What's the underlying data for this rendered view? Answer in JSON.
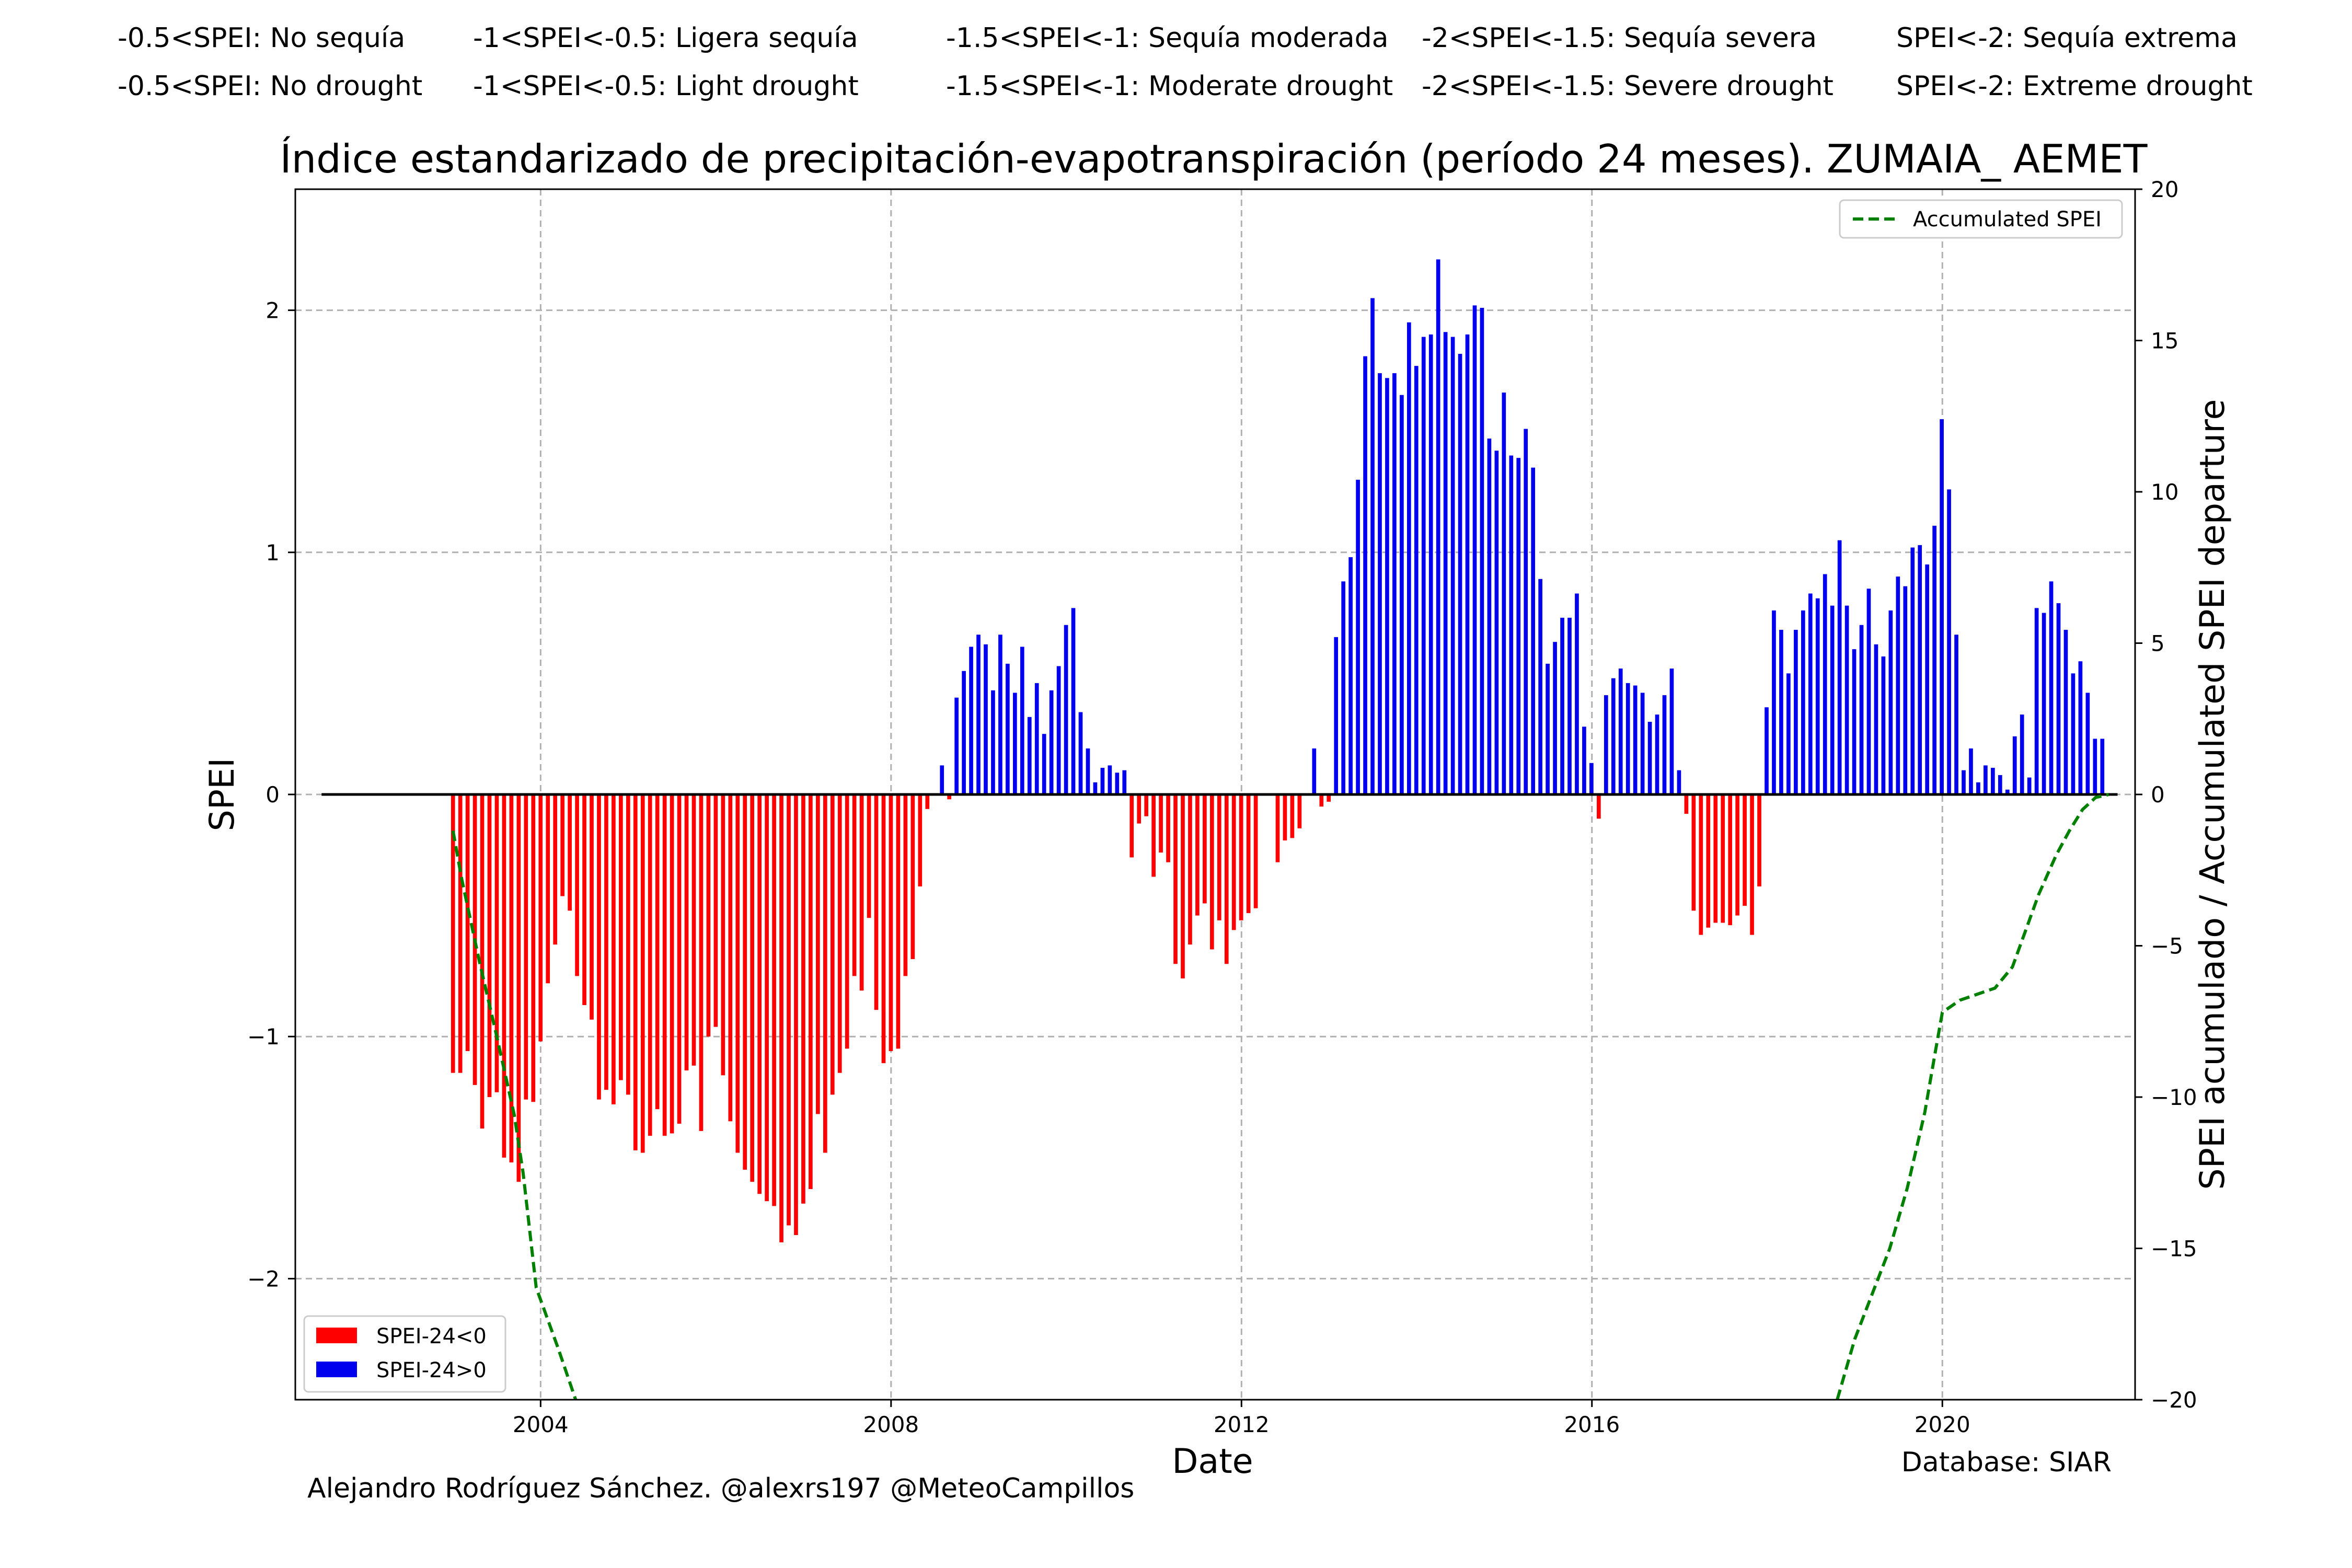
{
  "header": {
    "row_es": [
      "-0.5<SPEI: No sequía",
      "-1<SPEI<-0.5: Ligera sequía",
      "-1.5<SPEI<-1: Sequía moderada",
      "-2<SPEI<-1.5: Sequía severa",
      "SPEI<-2: Sequía extrema"
    ],
    "row_en": [
      "-0.5<SPEI: No drought",
      "-1<SPEI<-0.5: Light drought",
      "-1.5<SPEI<-1: Moderate drought",
      "-2<SPEI<-1.5: Severe drought",
      "SPEI<-2: Extreme drought"
    ]
  },
  "footer": {
    "author": "Alejandro Rodríguez Sánchez. @alexrs197 @MeteoCampillos",
    "database": "Database: SIAR"
  },
  "colors": {
    "negative": "#ff0000",
    "positive": "#0000ee",
    "accumulated": "#008000",
    "grid": "#b0b0b0"
  },
  "chart_data": {
    "type": "bar",
    "title": "Índice estandarizado de precipitación-evapotranspiración (período 24 meses). ZUMAIA_ AEMET",
    "xlabel": "Date",
    "ylabel": "SPEI",
    "y2label": "SPEI acumulado / Accumulated SPEI departure",
    "xlim": [
      2001.2,
      2022.2
    ],
    "ylim": [
      -2.5,
      2.5
    ],
    "y2lim": [
      -20,
      20
    ],
    "xticks": [
      2004,
      2008,
      2012,
      2016,
      2020
    ],
    "yticks": [
      -2,
      -1,
      0,
      1,
      2
    ],
    "y2ticks": [
      -20,
      -15,
      -10,
      -5,
      0,
      5,
      10,
      15,
      20
    ],
    "grid": true,
    "bar_start": 2003.0,
    "bar_step_years": 0.0833,
    "spei_24": [
      -1.15,
      -1.15,
      -1.06,
      -1.2,
      -1.38,
      -1.25,
      -1.23,
      -1.5,
      -1.52,
      -1.6,
      -1.26,
      -1.27,
      -1.02,
      -0.78,
      -0.62,
      -0.42,
      -0.48,
      -0.75,
      -0.87,
      -0.93,
      -1.26,
      -1.22,
      -1.28,
      -1.18,
      -1.24,
      -1.47,
      -1.48,
      -1.41,
      -1.3,
      -1.41,
      -1.4,
      -1.36,
      -1.14,
      -1.12,
      -1.39,
      -1.0,
      -0.96,
      -1.16,
      -1.35,
      -1.48,
      -1.55,
      -1.6,
      -1.65,
      -1.68,
      -1.7,
      -1.85,
      -1.78,
      -1.82,
      -1.69,
      -1.63,
      -1.32,
      -1.48,
      -1.24,
      -1.15,
      -1.05,
      -0.75,
      -0.81,
      -0.51,
      -0.89,
      -1.11,
      -1.06,
      -1.05,
      -0.75,
      -0.68,
      -0.38,
      -0.06,
      0.0,
      0.12,
      -0.02,
      0.4,
      0.51,
      0.61,
      0.66,
      0.62,
      0.43,
      0.66,
      0.54,
      0.42,
      0.61,
      0.32,
      0.46,
      0.25,
      0.43,
      0.53,
      0.7,
      0.77,
      0.34,
      0.19,
      0.05,
      0.11,
      0.12,
      0.09,
      0.1,
      -0.26,
      -0.12,
      -0.09,
      -0.34,
      -0.24,
      -0.28,
      -0.7,
      -0.76,
      -0.62,
      -0.5,
      -0.45,
      -0.64,
      -0.52,
      -0.7,
      -0.56,
      -0.52,
      -0.49,
      -0.47,
      0.0,
      0.0,
      -0.28,
      -0.19,
      -0.18,
      -0.14,
      0.0,
      0.19,
      -0.05,
      -0.03,
      0.65,
      0.88,
      0.98,
      1.3,
      1.81,
      2.05,
      1.74,
      1.72,
      1.74,
      1.65,
      1.95,
      1.77,
      1.89,
      1.9,
      2.21,
      1.91,
      1.89,
      1.82,
      1.9,
      2.02,
      2.01,
      1.47,
      1.42,
      1.66,
      1.4,
      1.39,
      1.51,
      1.35,
      0.89,
      0.54,
      0.63,
      0.73,
      0.73,
      0.83,
      0.28,
      0.13,
      -0.1,
      0.41,
      0.48,
      0.52,
      0.46,
      0.45,
      0.42,
      0.3,
      0.33,
      0.41,
      0.52,
      0.1,
      -0.08,
      -0.48,
      -0.58,
      -0.55,
      -0.53,
      -0.53,
      -0.54,
      -0.5,
      -0.46,
      -0.58,
      -0.38,
      0.36,
      0.76,
      0.68,
      0.5,
      0.68,
      0.76,
      0.83,
      0.81,
      0.91,
      0.78,
      1.05,
      0.78,
      0.6,
      0.7,
      0.85,
      0.62,
      0.57,
      0.76,
      0.9,
      0.86,
      1.02,
      1.03,
      0.95,
      1.11,
      1.55,
      1.26,
      0.66,
      0.1,
      0.19,
      0.05,
      0.12,
      0.11,
      0.08,
      0.02,
      0.24,
      0.33,
      0.07,
      0.77,
      0.75,
      0.88,
      0.79,
      0.68,
      0.5,
      0.55,
      0.42,
      0.23,
      0.23
    ],
    "baseline_range": [
      2001.5,
      2022.0
    ],
    "accumulated": {
      "name": "Accumulated SPEI",
      "segments": [
        {
          "x": [
            2003.0,
            2003.1,
            2003.3,
            2003.5,
            2003.7,
            2003.8,
            2003.95,
            2004.2,
            2004.4
          ],
          "y": [
            -1.2,
            -2.8,
            -5.5,
            -8.0,
            -10.6,
            -12.5,
            -16.3,
            -18.3,
            -20.0
          ]
        },
        {
          "x": [
            2018.8,
            2019.0,
            2019.2,
            2019.4,
            2019.6,
            2019.8,
            2019.92,
            2020.0,
            2020.2,
            2020.4,
            2020.6,
            2020.8,
            2020.95,
            2021.1,
            2021.3,
            2021.45,
            2021.6,
            2021.75,
            2021.9
          ],
          "y": [
            -20.0,
            -18.0,
            -16.5,
            -15.0,
            -13.0,
            -10.5,
            -8.5,
            -7.2,
            -6.8,
            -6.6,
            -6.4,
            -5.7,
            -4.5,
            -3.3,
            -2.0,
            -1.2,
            -0.5,
            -0.1,
            0.0
          ]
        }
      ]
    },
    "legend": {
      "accumulated": "Accumulated SPEI",
      "negative": "SPEI-24<0",
      "positive": "SPEI-24>0"
    }
  }
}
